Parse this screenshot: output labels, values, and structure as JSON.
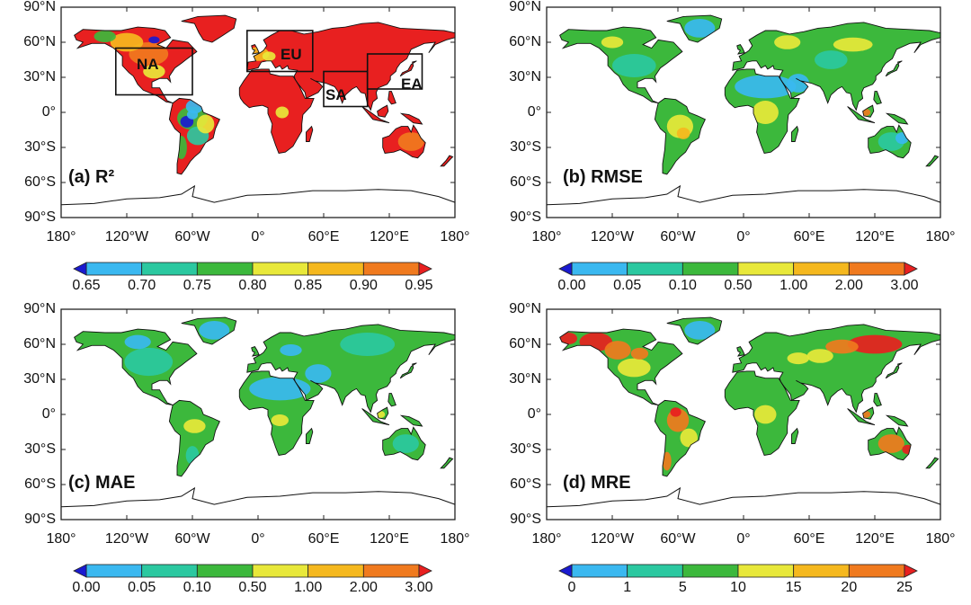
{
  "colors": {
    "deep_blue": "#1a1ad0",
    "sky": "#3ab8f0",
    "teal": "#2bc8a0",
    "green": "#3cb83c",
    "yellow": "#e8e83a",
    "orange_yellow": "#f5b81e",
    "orange": "#f07a1e",
    "red": "#e82020"
  },
  "axis_labels": {
    "y": [
      "90°N",
      "60°N",
      "30°N",
      "0°",
      "30°S",
      "60°S",
      "90°S"
    ],
    "x": [
      "180°",
      "120°W",
      "60°W",
      "0°",
      "60°E",
      "120°E",
      "180°"
    ]
  },
  "panels": [
    {
      "id": "a",
      "label": "(a) R²",
      "colorbar_ticks": [
        "0.65",
        "0.70",
        "0.75",
        "0.80",
        "0.85",
        "0.90",
        "0.95"
      ],
      "regions": [
        {
          "name": "NA"
        },
        {
          "name": "EU"
        },
        {
          "name": "SA"
        },
        {
          "name": "EA"
        }
      ],
      "dominant_color": "#e82020"
    },
    {
      "id": "b",
      "label": "(b) RMSE",
      "colorbar_ticks": [
        "0.00",
        "0.05",
        "0.10",
        "0.50",
        "1.00",
        "2.00",
        "3.00"
      ],
      "dominant_color": "#3cb83c"
    },
    {
      "id": "c",
      "label": "(c) MAE",
      "colorbar_ticks": [
        "0.00",
        "0.05",
        "0.10",
        "0.50",
        "1.00",
        "2.00",
        "3.00"
      ],
      "dominant_color": "#3cb83c"
    },
    {
      "id": "d",
      "label": "(d) MRE",
      "colorbar_ticks": [
        "0",
        "1",
        "5",
        "10",
        "15",
        "20",
        "25"
      ],
      "dominant_color": "#3cb83c"
    }
  ]
}
